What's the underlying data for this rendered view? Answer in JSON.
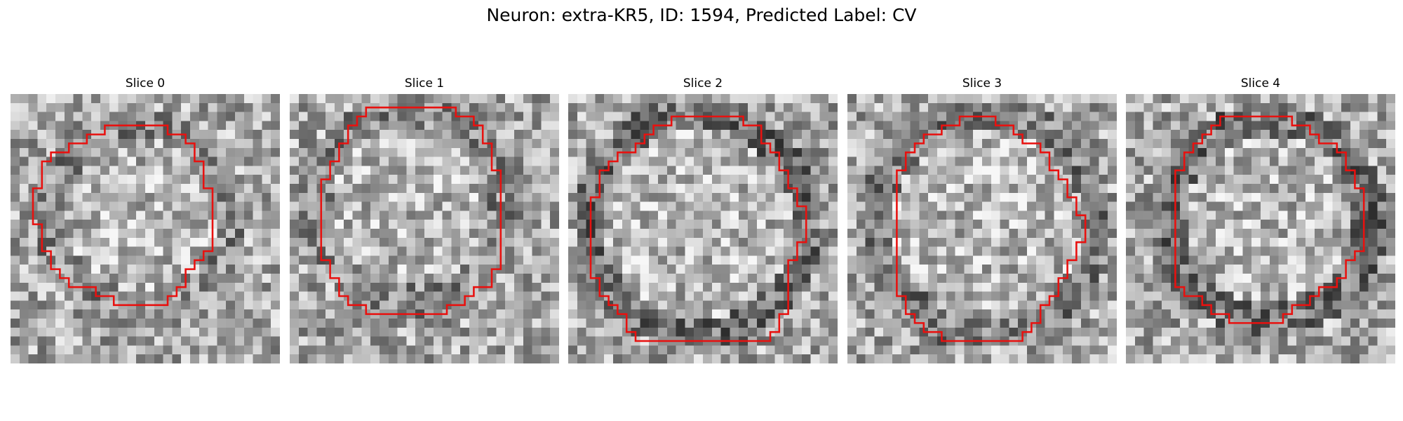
{
  "figure": {
    "title": "Neuron: extra-KR5, ID: 1594, Predicted Label: CV"
  },
  "panels": [
    {
      "title": "Slice 0",
      "seed": 11,
      "dark_ring": 0.55
    },
    {
      "title": "Slice 1",
      "seed": 23,
      "dark_ring": 0.55
    },
    {
      "title": "Slice 2",
      "seed": 37,
      "dark_ring": 0.45
    },
    {
      "title": "Slice 3",
      "seed": 41,
      "dark_ring": 0.5
    },
    {
      "title": "Slice 4",
      "seed": 53,
      "dark_ring": 0.45
    }
  ],
  "style": {
    "contour_color": "#e8110f"
  }
}
